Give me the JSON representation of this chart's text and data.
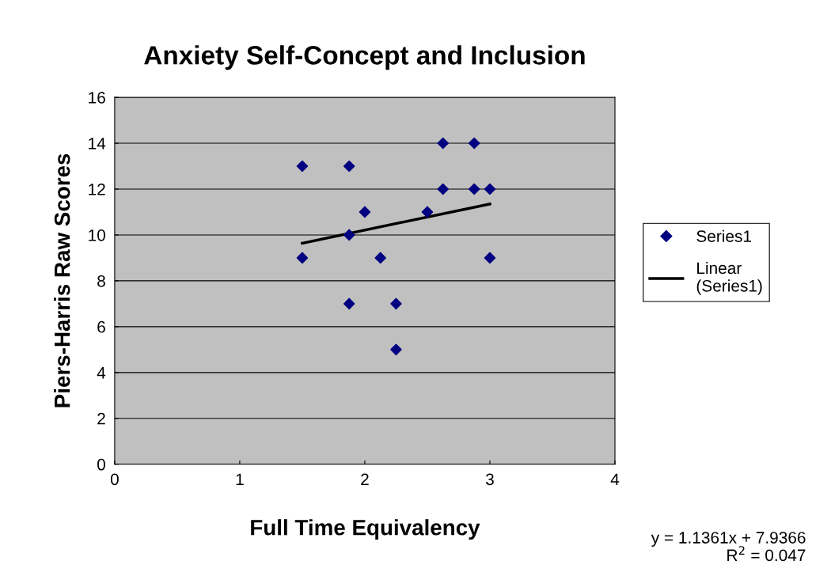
{
  "chart_data": {
    "type": "scatter",
    "title": "Anxiety Self-Concept and Inclusion",
    "xlabel": "Full Time Equivalency",
    "ylabel": "Piers-Harris Raw Scores",
    "series": [
      {
        "name": "Series1",
        "color": "#000080",
        "marker": "diamond",
        "x": [
          1.5,
          1.5,
          1.875,
          1.875,
          1.875,
          2,
          2.125,
          2.25,
          2.25,
          2.5,
          2.625,
          2.625,
          2.875,
          2.875,
          3,
          3
        ],
        "values": [
          13,
          9,
          13,
          10,
          7,
          11,
          9,
          7,
          5,
          11,
          14,
          12,
          14,
          12,
          12,
          9
        ]
      },
      {
        "name": "Linear (Series1)",
        "type": "line",
        "color": "#000000",
        "marker": "none",
        "line_style": "solid",
        "x": [
          1.5,
          3
        ],
        "values": [
          9.64,
          11.35
        ]
      }
    ],
    "xlim": [
      0,
      4
    ],
    "xticks": [
      0,
      1,
      2,
      3,
      4
    ],
    "ylim": [
      0,
      16
    ],
    "yticks": [
      0,
      2,
      4,
      6,
      8,
      10,
      12,
      14,
      16
    ],
    "grid": "y",
    "legend": "right",
    "annotations": [
      "y = 1.1361x + 7.9366\nR$^{2}$ = 0.047"
    ]
  }
}
